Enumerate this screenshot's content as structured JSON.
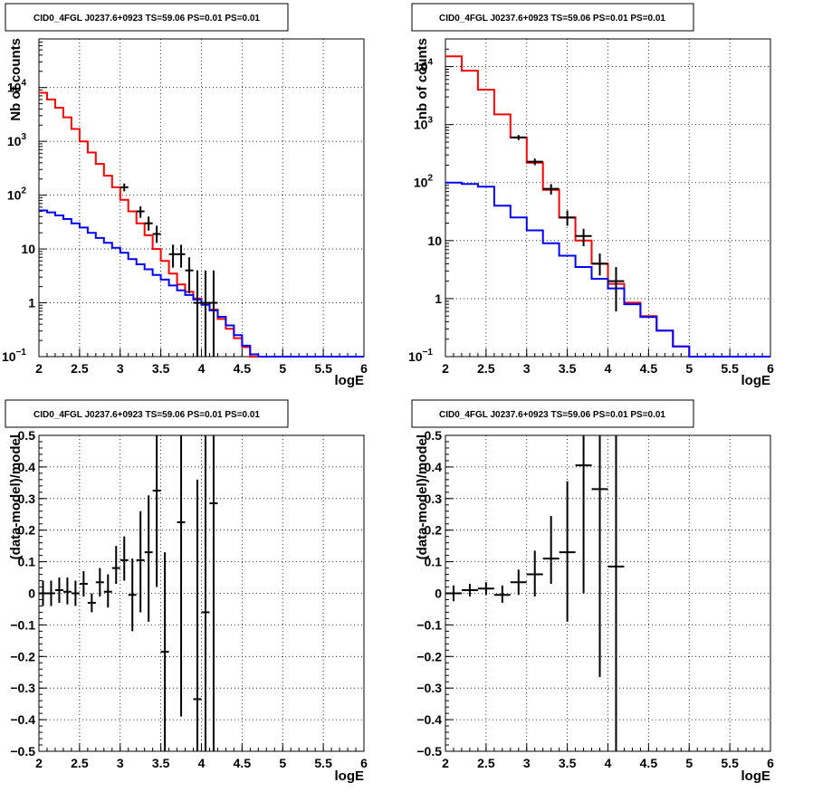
{
  "chart_data": [
    {
      "type": "line",
      "title": "CID0_4FGL J0237.6+0923 TS=59.06 PS=0.01 PS=0.01",
      "xlabel": "logE",
      "ylabel": "Nb of counts",
      "xlim": [
        2,
        6
      ],
      "ylim": [
        0.1,
        80000
      ],
      "yscale": "log",
      "grid": true,
      "x_ticks": [
        "2",
        "2.5",
        "3",
        "3.5",
        "4",
        "4.5",
        "5",
        "5.5",
        "6"
      ],
      "y_ticks": [
        {
          "v": 0.1,
          "base": "10",
          "exp": "−1"
        },
        {
          "v": 1,
          "text": "1"
        },
        {
          "v": 10,
          "text": "10"
        },
        {
          "v": 100,
          "base": "10",
          "exp": "2"
        },
        {
          "v": 1000,
          "base": "10",
          "exp": "3"
        },
        {
          "v": 10000,
          "base": "10",
          "exp": "4"
        }
      ],
      "bin_edges": [
        2.0,
        2.1,
        2.2,
        2.3,
        2.4,
        2.5,
        2.6,
        2.7,
        2.8,
        2.9,
        3.0,
        3.1,
        3.2,
        3.3,
        3.4,
        3.5,
        3.6,
        3.7,
        3.8,
        3.9,
        4.0,
        4.1,
        4.2,
        4.3,
        4.4,
        4.5,
        4.6,
        4.7,
        4.8,
        4.9,
        5.0,
        5.1,
        5.2,
        5.3,
        5.4,
        5.5,
        5.6,
        5.7,
        5.8,
        5.9,
        6.0
      ],
      "series": [
        {
          "color": "#ff0000",
          "values": [
            8000,
            6000,
            4200,
            2800,
            1700,
            1000,
            620,
            380,
            230,
            140,
            82,
            50,
            30,
            18,
            10,
            6,
            3.5,
            2.2,
            1.6,
            1.2,
            1.0,
            0.75,
            0.5,
            0.33,
            0.22,
            0.15,
            0.1,
            0.1,
            0.1,
            0.1,
            0.1,
            0.1,
            0.1,
            0.1,
            0.1,
            0.1,
            0.1,
            0.1,
            0.1,
            0.1
          ]
        },
        {
          "color": "#0000ff",
          "values": [
            52,
            48,
            42,
            36,
            30,
            25,
            20,
            16,
            13,
            10.5,
            8.5,
            6.5,
            5.2,
            4.2,
            3.3,
            2.7,
            2.1,
            1.7,
            1.4,
            1.15,
            0.92,
            0.72,
            0.55,
            0.38,
            0.25,
            0.16,
            0.11,
            0.1,
            0.1,
            0.1,
            0.1,
            0.1,
            0.1,
            0.1,
            0.1,
            0.1,
            0.1,
            0.1,
            0.1,
            0.1
          ]
        }
      ],
      "data_points": [
        {
          "x": 3.05,
          "y": 140,
          "lo": 118,
          "hi": 165
        },
        {
          "x": 3.25,
          "y": 50,
          "lo": 38,
          "hi": 62
        },
        {
          "x": 3.35,
          "y": 30,
          "lo": 22,
          "hi": 40
        },
        {
          "x": 3.45,
          "y": 19,
          "lo": 13,
          "hi": 27
        },
        {
          "x": 3.65,
          "y": 8,
          "lo": 4.5,
          "hi": 12
        },
        {
          "x": 3.75,
          "y": 8,
          "lo": 4.5,
          "hi": 12
        },
        {
          "x": 3.85,
          "y": 4,
          "lo": 1.5,
          "hi": 7
        },
        {
          "x": 3.95,
          "y": 1,
          "lo": 0.1,
          "hi": 4
        },
        {
          "x": 4.05,
          "y": 1,
          "lo": 0.1,
          "hi": 4
        },
        {
          "x": 4.15,
          "y": 1,
          "lo": 0.1,
          "hi": 4
        }
      ]
    },
    {
      "type": "line",
      "title": "CID0_4FGL J0237.6+0923 TS=59.06 PS=0.01 PS=0.01",
      "xlabel": "logE",
      "ylabel": "nb of counts",
      "xlim": [
        2,
        6
      ],
      "ylim": [
        0.1,
        30000
      ],
      "yscale": "log",
      "grid": true,
      "x_ticks": [
        "2",
        "2.5",
        "3",
        "3.5",
        "4",
        "4.5",
        "5",
        "5.5",
        "6"
      ],
      "y_ticks": [
        {
          "v": 0.1,
          "base": "10",
          "exp": "−1"
        },
        {
          "v": 1,
          "text": "1"
        },
        {
          "v": 10,
          "text": "10"
        },
        {
          "v": 100,
          "base": "10",
          "exp": "2"
        },
        {
          "v": 1000,
          "base": "10",
          "exp": "3"
        },
        {
          "v": 10000,
          "base": "10",
          "exp": "4"
        }
      ],
      "bin_edges": [
        2.0,
        2.2,
        2.4,
        2.6,
        2.8,
        3.0,
        3.2,
        3.4,
        3.6,
        3.8,
        4.0,
        4.2,
        4.4,
        4.6,
        4.8,
        5.0,
        5.2,
        5.4,
        5.6,
        5.8,
        6.0
      ],
      "series": [
        {
          "color": "#ff0000",
          "values": [
            15000,
            8500,
            4000,
            1500,
            600,
            220,
            75,
            25,
            10,
            4,
            1.8,
            0.85,
            0.5,
            0.28,
            0.15,
            0.1,
            0.1,
            0.1,
            0.1,
            0.1
          ]
        },
        {
          "color": "#0000ff",
          "values": [
            100,
            95,
            85,
            40,
            25,
            15,
            9,
            5.5,
            3.5,
            2.2,
            1.5,
            0.8,
            0.48,
            0.28,
            0.15,
            0.1,
            0.1,
            0.1,
            0.1,
            0.1
          ]
        }
      ],
      "data_points": [
        {
          "x": 2.9,
          "y": 600,
          "lo": 540,
          "hi": 660
        },
        {
          "x": 3.1,
          "y": 230,
          "lo": 200,
          "hi": 260
        },
        {
          "x": 3.3,
          "y": 78,
          "lo": 62,
          "hi": 94
        },
        {
          "x": 3.5,
          "y": 25,
          "lo": 18,
          "hi": 33
        },
        {
          "x": 3.7,
          "y": 12,
          "lo": 8,
          "hi": 16
        },
        {
          "x": 3.9,
          "y": 4,
          "lo": 2.5,
          "hi": 6
        },
        {
          "x": 4.1,
          "y": 2,
          "lo": 0.6,
          "hi": 3.5
        }
      ]
    },
    {
      "type": "scatter",
      "title": "CID0_4FGL J0237.6+0923 TS=59.06 PS=0.01 PS=0.01",
      "xlabel": "logE",
      "ylabel": "(data-model)/model",
      "xlim": [
        2,
        6
      ],
      "ylim": [
        -0.5,
        0.5
      ],
      "grid": true,
      "x_ticks": [
        "2",
        "2.5",
        "3",
        "3.5",
        "4",
        "4.5",
        "5",
        "5.5",
        "6"
      ],
      "y_ticks": [
        {
          "v": -0.5,
          "text": "−0.5"
        },
        {
          "v": -0.4,
          "text": "−0.4"
        },
        {
          "v": -0.3,
          "text": "−0.3"
        },
        {
          "v": -0.2,
          "text": "−0.2"
        },
        {
          "v": -0.1,
          "text": "−0.1"
        },
        {
          "v": 0,
          "text": "0"
        },
        {
          "v": 0.1,
          "text": "0.1"
        },
        {
          "v": 0.2,
          "text": "0.2"
        },
        {
          "v": 0.3,
          "text": "0.3"
        },
        {
          "v": 0.4,
          "text": "0.4"
        },
        {
          "v": 0.5,
          "text": "0.5"
        }
      ],
      "data_points": [
        {
          "x": 2.05,
          "y": 0.0,
          "lo": -0.04,
          "hi": 0.04
        },
        {
          "x": 2.15,
          "y": 0.0,
          "lo": -0.04,
          "hi": 0.04
        },
        {
          "x": 2.25,
          "y": 0.01,
          "lo": -0.03,
          "hi": 0.05
        },
        {
          "x": 2.35,
          "y": 0.005,
          "lo": -0.035,
          "hi": 0.05
        },
        {
          "x": 2.45,
          "y": 0.0,
          "lo": -0.04,
          "hi": 0.04
        },
        {
          "x": 2.55,
          "y": 0.03,
          "lo": -0.01,
          "hi": 0.07
        },
        {
          "x": 2.65,
          "y": -0.03,
          "lo": -0.06,
          "hi": 0.0
        },
        {
          "x": 2.75,
          "y": 0.035,
          "lo": -0.01,
          "hi": 0.08
        },
        {
          "x": 2.85,
          "y": 0.005,
          "lo": -0.045,
          "hi": 0.06
        },
        {
          "x": 2.95,
          "y": 0.08,
          "lo": 0.03,
          "hi": 0.15
        },
        {
          "x": 3.05,
          "y": 0.105,
          "lo": 0.04,
          "hi": 0.18
        },
        {
          "x": 3.15,
          "y": -0.005,
          "lo": -0.12,
          "hi": 0.11
        },
        {
          "x": 3.25,
          "y": 0.105,
          "lo": -0.06,
          "hi": 0.26
        },
        {
          "x": 3.35,
          "y": 0.13,
          "lo": -0.09,
          "hi": 0.31
        },
        {
          "x": 3.45,
          "y": 0.325,
          "lo": 0.02,
          "hi": 0.5
        },
        {
          "x": 3.55,
          "y": -0.185,
          "lo": -0.5,
          "hi": 0.13
        },
        {
          "x": 3.75,
          "y": 0.225,
          "lo": -0.39,
          "hi": 0.5
        },
        {
          "x": 3.95,
          "y": -0.335,
          "lo": -0.5,
          "hi": 0.36
        },
        {
          "x": 4.05,
          "y": -0.06,
          "lo": -0.5,
          "hi": 0.5
        },
        {
          "x": 4.15,
          "y": 0.285,
          "lo": -0.5,
          "hi": 0.5
        }
      ]
    },
    {
      "type": "scatter",
      "title": "CID0_4FGL J0237.6+0923 TS=59.06 PS=0.01 PS=0.01",
      "xlabel": "logE",
      "ylabel": "(data-model)/model",
      "xlim": [
        2,
        6
      ],
      "ylim": [
        -0.5,
        0.5
      ],
      "grid": true,
      "x_ticks": [
        "2",
        "2.5",
        "3",
        "3.5",
        "4",
        "4.5",
        "5",
        "5.5",
        "6"
      ],
      "y_ticks": [
        {
          "v": -0.5,
          "text": "−0.5"
        },
        {
          "v": -0.4,
          "text": "−0.4"
        },
        {
          "v": -0.3,
          "text": "−0.3"
        },
        {
          "v": -0.2,
          "text": "−0.2"
        },
        {
          "v": -0.1,
          "text": "−0.1"
        },
        {
          "v": 0,
          "text": "0"
        },
        {
          "v": 0.1,
          "text": "0.1"
        },
        {
          "v": 0.2,
          "text": "0.2"
        },
        {
          "v": 0.3,
          "text": "0.3"
        },
        {
          "v": 0.4,
          "text": "0.4"
        },
        {
          "v": 0.5,
          "text": "0.5"
        }
      ],
      "data_points": [
        {
          "x": 2.1,
          "y": 0.0,
          "lo": -0.025,
          "hi": 0.025
        },
        {
          "x": 2.3,
          "y": 0.01,
          "lo": -0.01,
          "hi": 0.03
        },
        {
          "x": 2.5,
          "y": 0.015,
          "lo": -0.005,
          "hi": 0.035
        },
        {
          "x": 2.7,
          "y": -0.005,
          "lo": -0.03,
          "hi": 0.025
        },
        {
          "x": 2.9,
          "y": 0.035,
          "lo": -0.005,
          "hi": 0.075
        },
        {
          "x": 3.1,
          "y": 0.06,
          "lo": -0.01,
          "hi": 0.135
        },
        {
          "x": 3.3,
          "y": 0.11,
          "lo": 0.03,
          "hi": 0.245
        },
        {
          "x": 3.5,
          "y": 0.13,
          "lo": -0.09,
          "hi": 0.355
        },
        {
          "x": 3.7,
          "y": 0.405,
          "lo": 0.0,
          "hi": 0.5
        },
        {
          "x": 3.9,
          "y": 0.33,
          "lo": -0.265,
          "hi": 0.5
        },
        {
          "x": 4.1,
          "y": 0.085,
          "lo": -0.5,
          "hi": 0.5
        }
      ]
    }
  ]
}
